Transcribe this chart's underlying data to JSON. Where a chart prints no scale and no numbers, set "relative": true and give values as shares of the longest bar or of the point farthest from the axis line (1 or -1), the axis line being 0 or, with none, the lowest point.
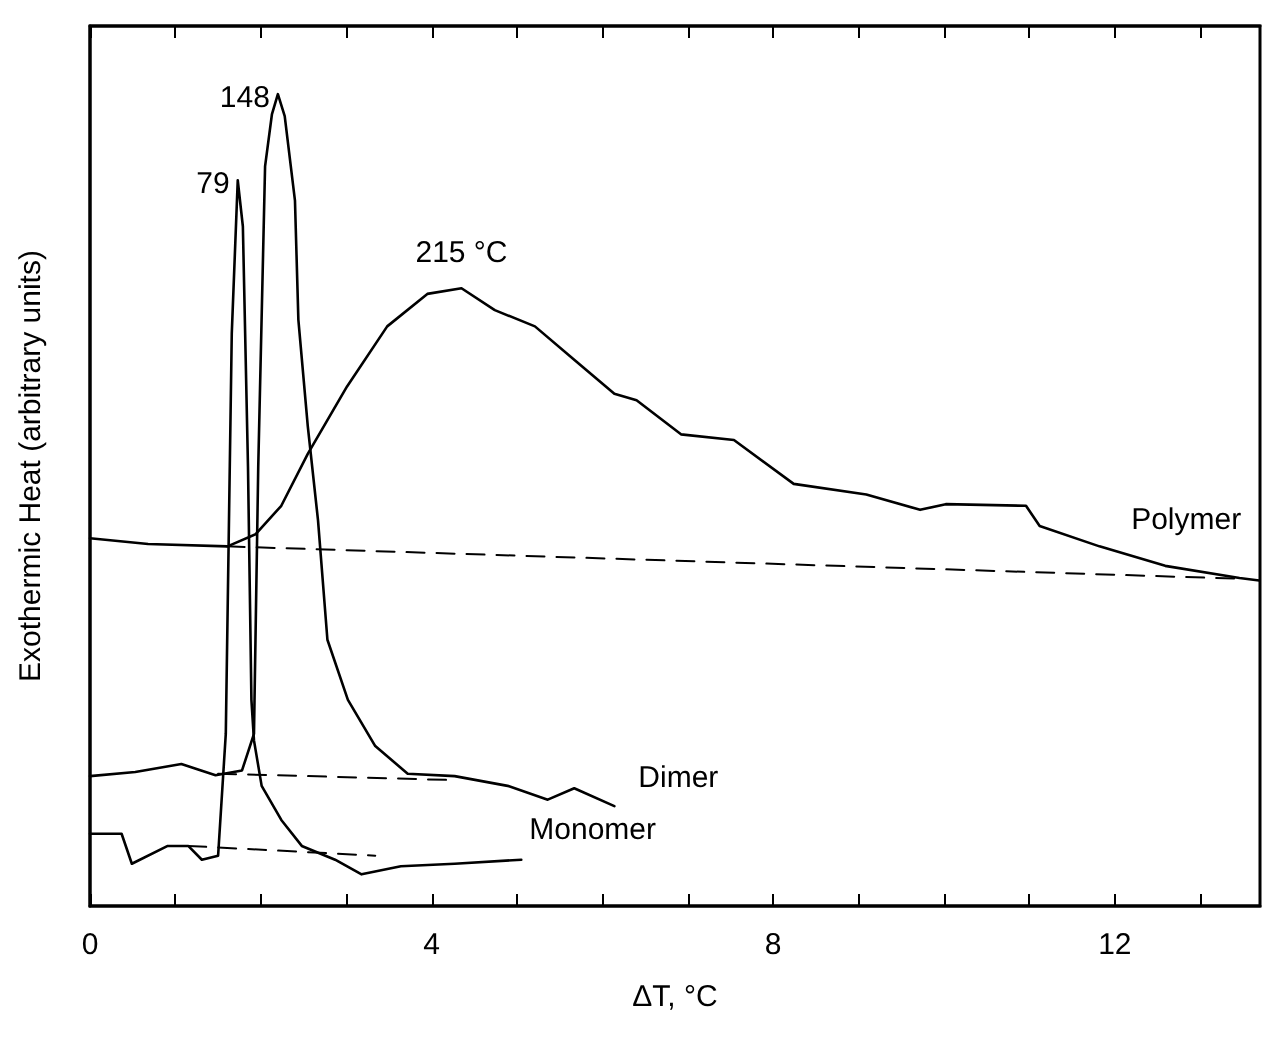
{
  "chart_data": {
    "type": "line",
    "relative": true,
    "xlabel": "ΔT, °C",
    "ylabel": "Exothermic Heat (arbitrary units)",
    "xlim": [
      0,
      13.7
    ],
    "xticks": [
      0,
      {
        "value": 1,
        "label": null
      },
      {
        "value": 2,
        "label": null
      },
      {
        "value": 3,
        "label": null
      },
      4,
      {
        "value": 5,
        "label": null
      },
      {
        "value": 6,
        "label": null
      },
      {
        "value": 7,
        "label": null
      },
      8,
      {
        "value": 9,
        "label": null
      },
      {
        "value": 10,
        "label": null
      },
      {
        "value": 11,
        "label": null
      },
      12,
      {
        "value": 13,
        "label": null
      }
    ],
    "grid": false,
    "line_style": "solid",
    "annotations": [
      {
        "text": "79",
        "x": 1.73,
        "y": 0.894
      },
      {
        "text": "148",
        "x": 2.2,
        "y": 1.0
      },
      {
        "text": "215 °C",
        "x": 4.35,
        "y": 0.761
      }
    ],
    "series": [
      {
        "name": "Polymer",
        "color": "#000000",
        "x": [
          0,
          0.68,
          1.61,
          1.94,
          2.24,
          2.55,
          3.01,
          3.48,
          3.95,
          4.35,
          4.74,
          5.21,
          5.68,
          6.14,
          6.4,
          6.92,
          7.54,
          8.24,
          9.09,
          9.72,
          10.02,
          10.96,
          11.12,
          11.82,
          12.59,
          13.46,
          13.69
        ],
        "values": [
          0.453,
          0.446,
          0.443,
          0.458,
          0.493,
          0.557,
          0.64,
          0.714,
          0.754,
          0.761,
          0.734,
          0.714,
          0.672,
          0.631,
          0.623,
          0.581,
          0.574,
          0.52,
          0.507,
          0.488,
          0.495,
          0.493,
          0.468,
          0.443,
          0.419,
          0.404,
          0.401
        ]
      },
      {
        "name": "Dimer",
        "color": "#000000",
        "x": [
          0,
          0.53,
          1.07,
          1.47,
          1.78,
          1.92,
          1.97,
          2.05,
          2.13,
          2.2,
          2.28,
          2.4,
          2.44,
          2.55,
          2.67,
          2.78,
          3.02,
          3.34,
          3.72,
          4.27,
          4.89,
          5.36,
          5.67,
          6.14
        ],
        "values": [
          0.16,
          0.165,
          0.175,
          0.161,
          0.167,
          0.212,
          0.541,
          0.911,
          0.975,
          1.0,
          0.973,
          0.869,
          0.722,
          0.591,
          0.475,
          0.328,
          0.254,
          0.197,
          0.163,
          0.16,
          0.148,
          0.131,
          0.145,
          0.123
        ]
      },
      {
        "name": "Monomer",
        "color": "#000000",
        "x": [
          0,
          0.37,
          0.49,
          0.91,
          1.15,
          1.31,
          1.5,
          1.59,
          1.66,
          1.73,
          1.79,
          1.85,
          1.89,
          1.92,
          2.01,
          2.24,
          2.48,
          2.87,
          3.18,
          3.64,
          4.27,
          5.05
        ],
        "values": [
          0.089,
          0.089,
          0.052,
          0.074,
          0.074,
          0.057,
          0.062,
          0.212,
          0.705,
          0.894,
          0.837,
          0.541,
          0.254,
          0.204,
          0.148,
          0.106,
          0.074,
          0.057,
          0.039,
          0.049,
          0.052,
          0.057
        ]
      },
      {
        "color": "#000000",
        "line_style": "dashed",
        "x": [
          1.6,
          13.5
        ],
        "values": [
          0.443,
          0.403
        ]
      },
      {
        "color": "#000000",
        "line_style": "dashed",
        "x": [
          1.5,
          4.3
        ],
        "values": [
          0.163,
          0.155
        ]
      },
      {
        "color": "#000000",
        "line_style": "dashed",
        "x": [
          1.15,
          3.34
        ],
        "values": [
          0.074,
          0.062
        ]
      }
    ]
  }
}
